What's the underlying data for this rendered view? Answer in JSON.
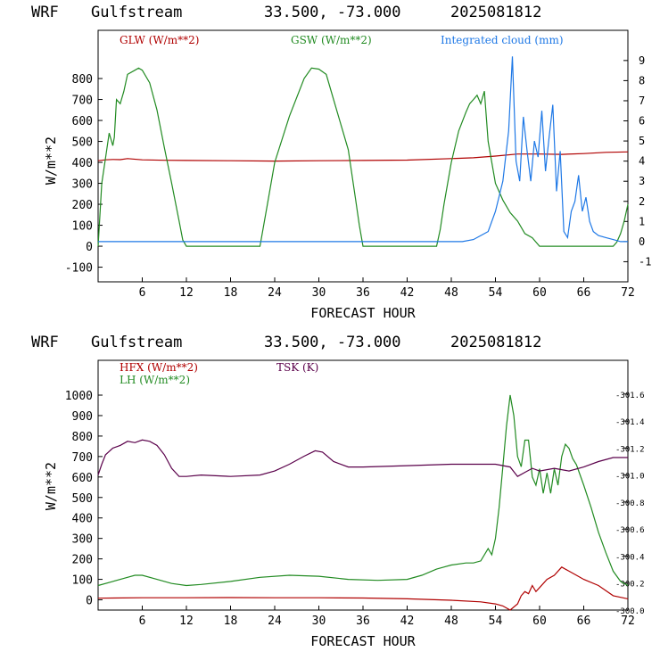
{
  "panels": [
    {
      "header": {
        "model": "WRF",
        "station": "Gulfstream",
        "coords": "33.500, -73.000",
        "run": "2025081812"
      },
      "chart_data": {
        "type": "line",
        "xlabel": "FORECAST HOUR",
        "ylabel": "W/m**2",
        "xlim": [
          0,
          72
        ],
        "ylim": [
          -170,
          1030
        ],
        "xticks": [
          6,
          12,
          18,
          24,
          30,
          36,
          42,
          48,
          54,
          60,
          66,
          72
        ],
        "yticks": [
          -100,
          0,
          100,
          200,
          300,
          400,
          500,
          600,
          700,
          800
        ],
        "y2lim": [
          -2,
          10.5
        ],
        "y2ticks": [
          -1,
          0,
          1,
          2,
          3,
          4,
          5,
          6,
          7,
          8,
          9
        ],
        "series": [
          {
            "name": "GLW (W/m**2)",
            "axis": "left",
            "color": "#b00000",
            "x": [
              0,
              0.5,
              1,
              2,
              3,
              4,
              6,
              9,
              12,
              18,
              24,
              30,
              36,
              42,
              48,
              51,
              54,
              57,
              60,
              63,
              66,
              69,
              72
            ],
            "y": [
              408,
              410,
              412,
              414,
              413,
              418,
              412,
              410,
              409,
              408,
              406,
              408,
              409,
              411,
              418,
              422,
              430,
              440,
              440,
              438,
              442,
              448,
              450
            ]
          },
          {
            "name": "GSW (W/m**2)",
            "axis": "left",
            "color": "#228b22",
            "x": [
              0,
              0.5,
              1,
              1.5,
              2,
              2.2,
              2.5,
              3,
              3.5,
              4,
              5,
              5.5,
              6,
              7,
              8,
              9,
              10,
              11,
              11.5,
              12,
              22,
              23,
              24,
              26,
              28,
              29,
              30,
              31,
              32,
              34,
              35,
              35.5,
              36,
              46,
              46.5,
              47,
              48,
              49,
              50,
              50.5,
              51,
              51.5,
              52,
              52.5,
              53,
              54,
              55,
              56,
              57,
              58,
              59,
              59.5,
              60,
              70,
              70.5,
              71,
              71.5,
              72
            ],
            "y": [
              0,
              300,
              420,
              540,
              480,
              520,
              700,
              680,
              740,
              820,
              840,
              850,
              840,
              780,
              650,
              470,
              300,
              120,
              30,
              0,
              0,
              200,
              400,
              620,
              800,
              850,
              845,
              820,
              700,
              460,
              220,
              100,
              0,
              0,
              80,
              200,
              400,
              550,
              640,
              680,
              700,
              720,
              680,
              740,
              500,
              300,
              220,
              160,
              120,
              60,
              40,
              20,
              0,
              0,
              20,
              60,
              120,
              200
            ]
          },
          {
            "name": "Integrated cloud (mm)",
            "axis": "right",
            "color": "#1e78e6",
            "x": [
              0,
              49.5,
              51,
              52,
              53,
              54,
              55,
              55.8,
              56.3,
              56.8,
              57.3,
              57.8,
              58.3,
              58.8,
              59.3,
              59.8,
              60.3,
              60.8,
              61.3,
              61.8,
              62.3,
              62.8,
              63.3,
              63.8,
              64.3,
              64.8,
              65.3,
              65.8,
              66.3,
              66.8,
              67.3,
              68,
              69,
              70,
              71,
              72
            ],
            "y": [
              0,
              0,
              0.1,
              0.3,
              0.5,
              1.5,
              3,
              5.5,
              9.2,
              4,
              3,
              6.2,
              4.5,
              3,
              5,
              4.2,
              6.5,
              3.5,
              5.2,
              6.8,
              2.5,
              4.5,
              0.5,
              0.2,
              1.5,
              2,
              3.3,
              1.5,
              2.2,
              1,
              0.5,
              0.3,
              0.2,
              0.1,
              0,
              0
            ]
          }
        ]
      }
    },
    {
      "header": {
        "model": "WRF",
        "station": "Gulfstream",
        "coords": "33.500, -73.000",
        "run": "2025081812"
      },
      "chart_data": {
        "type": "line",
        "xlabel": "FORECAST HOUR",
        "ylabel": "W/m**2",
        "xlim": [
          0,
          72
        ],
        "ylim": [
          -50,
          1170
        ],
        "xticks": [
          6,
          12,
          18,
          24,
          30,
          36,
          42,
          48,
          54,
          60,
          66,
          72
        ],
        "yticks": [
          0,
          100,
          200,
          300,
          400,
          500,
          600,
          700,
          800,
          900,
          1000
        ],
        "y2lim": [
          300.0,
          301.85
        ],
        "y2ticks": [
          300.0,
          300.2,
          300.4,
          300.6,
          300.8,
          301.0,
          301.2,
          301.4,
          301.6
        ],
        "series": [
          {
            "name": "HFX (W/m**2)",
            "axis": "left",
            "color": "#b00000",
            "x": [
              0,
              6,
              12,
              18,
              24,
              30,
              36,
              42,
              48,
              52,
              54,
              55,
              56,
              57,
              57.5,
              58,
              58.5,
              59,
              59.5,
              60,
              61,
              62,
              63,
              64,
              65,
              66,
              68,
              70,
              72
            ],
            "y": [
              8,
              10,
              10,
              11,
              10,
              10,
              9,
              5,
              -2,
              -10,
              -20,
              -30,
              -50,
              -20,
              20,
              40,
              30,
              70,
              40,
              60,
              100,
              120,
              160,
              140,
              120,
              100,
              70,
              20,
              5
            ]
          },
          {
            "name": "LH (W/m**2)",
            "axis": "left",
            "color": "#228b22",
            "x": [
              0,
              2,
              4,
              5,
              6,
              8,
              10,
              12,
              14,
              18,
              22,
              26,
              30,
              34,
              38,
              42,
              44,
              46,
              48,
              50,
              51,
              52,
              53,
              53.5,
              54,
              54.5,
              55,
              55.5,
              56,
              56.5,
              57,
              57.5,
              58,
              58.5,
              59,
              59.5,
              60,
              60.5,
              61,
              61.5,
              62,
              62.5,
              63,
              63.5,
              64,
              64.5,
              65,
              66,
              67,
              68,
              69,
              70,
              71,
              72
            ],
            "y": [
              70,
              90,
              110,
              120,
              120,
              100,
              80,
              70,
              75,
              90,
              110,
              120,
              115,
              100,
              95,
              100,
              120,
              150,
              170,
              180,
              180,
              190,
              250,
              220,
              300,
              450,
              650,
              850,
              1000,
              900,
              700,
              650,
              780,
              780,
              600,
              560,
              640,
              520,
              620,
              520,
              640,
              560,
              700,
              760,
              740,
              690,
              660,
              560,
              450,
              330,
              230,
              140,
              90,
              70
            ]
          },
          {
            "name": "TSK (K)",
            "axis": "right",
            "color": "#5a004a",
            "x": [
              0,
              0.5,
              1,
              2,
              3,
              4,
              5,
              6,
              7,
              8,
              9,
              10,
              11,
              12,
              14,
              18,
              22,
              24,
              26,
              28,
              29.5,
              30.5,
              32,
              34,
              36,
              42,
              48,
              54,
              56,
              57,
              58,
              59,
              60,
              62,
              64,
              66,
              68,
              70,
              72
            ],
            "y": [
              301.0,
              301.08,
              301.15,
              301.2,
              301.22,
              301.25,
              301.24,
              301.26,
              301.25,
              301.22,
              301.15,
              301.05,
              300.99,
              300.99,
              301.0,
              300.99,
              301.0,
              301.03,
              301.08,
              301.14,
              301.18,
              301.17,
              301.1,
              301.06,
              301.06,
              301.07,
              301.08,
              301.08,
              301.06,
              300.99,
              301.02,
              301.05,
              301.03,
              301.05,
              301.03,
              301.06,
              301.1,
              301.13,
              301.13
            ]
          }
        ]
      }
    }
  ]
}
